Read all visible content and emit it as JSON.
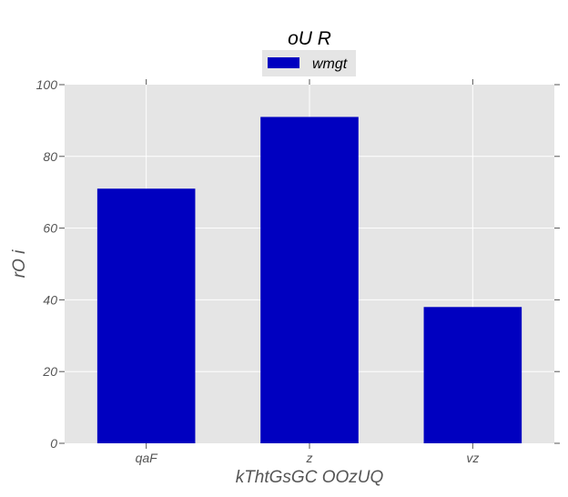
{
  "chart_data": {
    "type": "bar",
    "title": "oU R",
    "xlabel": "kThtGsGC OOzUQ",
    "ylabel": "rO i",
    "categories": [
      "qaF",
      "z",
      "vz"
    ],
    "series": [
      {
        "name": "wmgt",
        "values": [
          71,
          91,
          38
        ],
        "color": "#0000c0"
      }
    ],
    "ylim": [
      0,
      100
    ],
    "yticks": [
      0,
      20,
      40,
      60,
      80,
      100
    ],
    "grid": true,
    "legend_position": "top-center",
    "plot_background": "#e5e5e5",
    "grid_color": "#ffffff"
  }
}
